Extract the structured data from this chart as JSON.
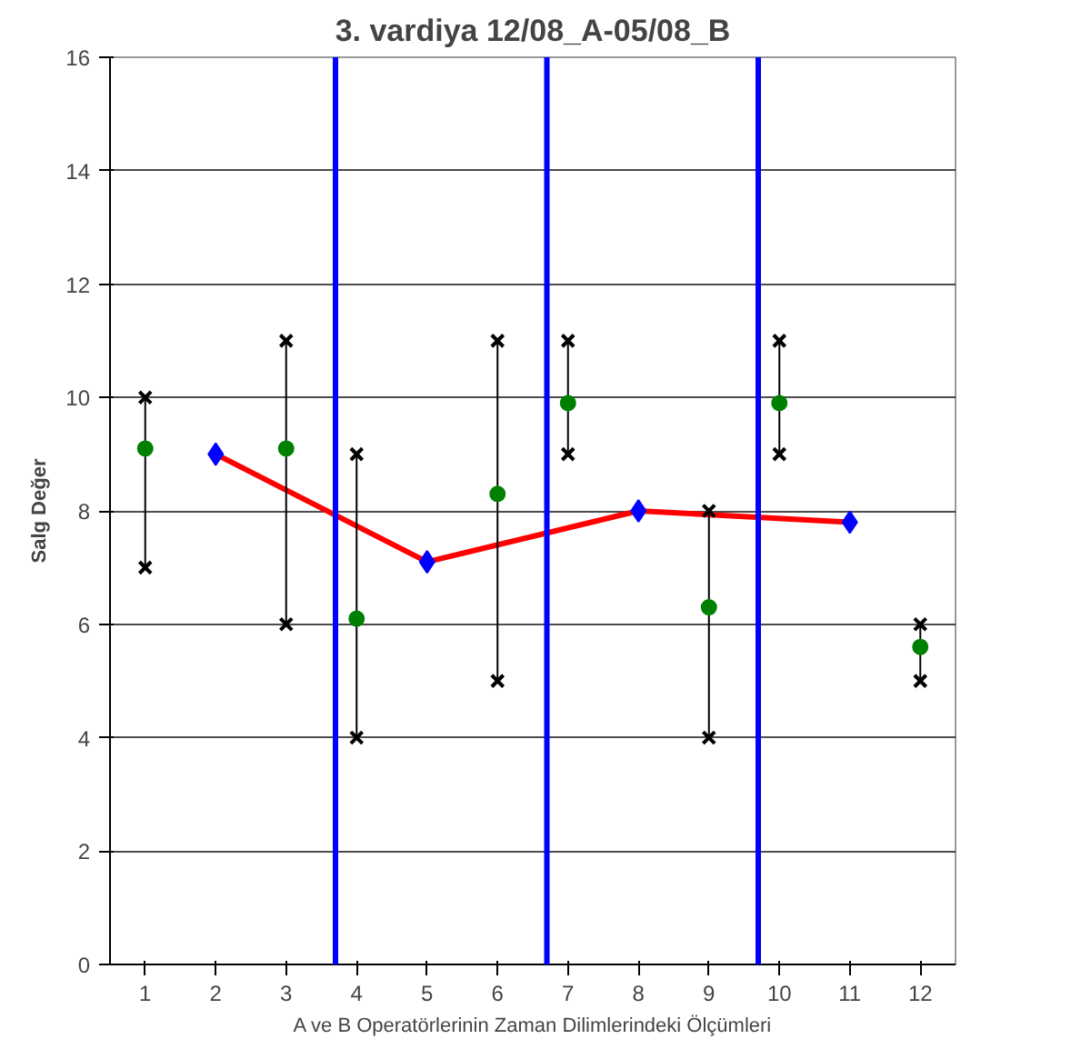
{
  "chart_data": {
    "type": "scatter",
    "title": "3. vardiya 12/08_A-05/08_B",
    "xlabel": "A ve B Operatörlerinin Zaman Dilimlerindeki Ölçümleri",
    "ylabel": "Salg Değer",
    "xlim": [
      0.5,
      12.5
    ],
    "xticks": [
      1,
      2,
      3,
      4,
      5,
      6,
      7,
      8,
      9,
      10,
      11,
      12
    ],
    "ylim": [
      0,
      16
    ],
    "yticks": [
      0,
      2,
      4,
      6,
      8,
      10,
      12,
      14,
      16
    ],
    "grid": "y",
    "series": [
      {
        "type": "line",
        "color": "#ff0000",
        "marker": "none",
        "x": [
          2,
          5,
          8,
          11
        ],
        "values": [
          9,
          7.1,
          8,
          7.8
        ]
      },
      {
        "color": "#0000ff",
        "marker": "diamond",
        "x": [
          2,
          5,
          8,
          11
        ],
        "values": [
          9,
          7.1,
          8,
          7.8
        ]
      },
      {
        "color": "#000000",
        "marker": "cross",
        "x": [
          1,
          3,
          4,
          6,
          7,
          9,
          10,
          12
        ],
        "values": [
          10,
          11,
          9,
          11,
          11,
          8,
          11,
          6
        ]
      },
      {
        "color": "#000000",
        "marker": "cross",
        "x": [
          1,
          3,
          4,
          6,
          7,
          9,
          10,
          12
        ],
        "values": [
          7,
          6,
          4,
          5,
          9,
          4,
          9,
          5
        ]
      },
      {
        "color": "#008000",
        "marker": "circle",
        "x": [
          1,
          3,
          4,
          6,
          7,
          9,
          10,
          12
        ],
        "values": [
          9.1,
          9.1,
          6.1,
          8.3,
          9.9,
          6.3,
          9.9,
          5.6
        ],
        "errors": [
          [
            7,
            10
          ],
          [
            6,
            11
          ],
          [
            4,
            9
          ],
          [
            5,
            11
          ],
          [
            9,
            11
          ],
          [
            4,
            8
          ],
          [
            9,
            11
          ],
          [
            5,
            6
          ]
        ]
      }
    ],
    "ref_lines": [
      {
        "axis": "x",
        "value": 3.7,
        "color": "#0000ff"
      },
      {
        "axis": "x",
        "value": 6.7,
        "color": "#0000ff"
      },
      {
        "axis": "x",
        "value": 9.7,
        "color": "#0000ff"
      }
    ]
  }
}
